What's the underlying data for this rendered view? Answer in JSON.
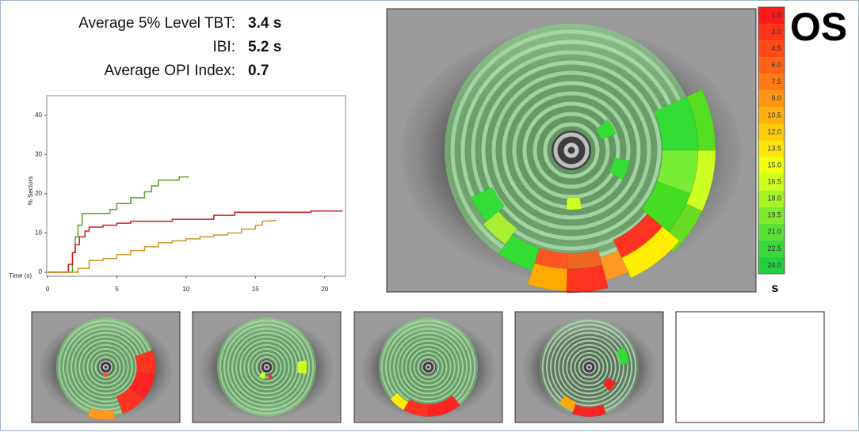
{
  "stats": [
    {
      "label": "Average 5% Level TBT:",
      "value": "3.4 s"
    },
    {
      "label": "IBI:",
      "value": "5.2 s"
    },
    {
      "label": "Average OPI Index:",
      "value": "0.7"
    }
  ],
  "chart_data": {
    "type": "line",
    "x_label": "Time (s)",
    "y_label": "% Sectors",
    "xlim": [
      0,
      21.5
    ],
    "ylim": [
      -1,
      45
    ],
    "xticks": [
      0,
      5,
      10,
      15,
      20
    ],
    "yticks": [
      0,
      10,
      20,
      30,
      40
    ],
    "series": [
      {
        "color": "#5aa02c",
        "x": [
          0,
          1.8,
          1.8,
          2.0,
          2.0,
          2.2,
          2.2,
          2.5,
          2.5,
          4.5,
          4.5,
          5,
          5,
          6,
          6,
          7,
          7,
          7.5,
          7.5,
          8,
          8,
          9.5,
          9.5,
          10.2
        ],
        "values": [
          0,
          0,
          5,
          5,
          9,
          9,
          12,
          12,
          15,
          15,
          16,
          16,
          17.5,
          17.5,
          19,
          19,
          20.5,
          20.5,
          22,
          22,
          23.5,
          23.5,
          24.3,
          24.3
        ]
      },
      {
        "color": "#cc1f1f",
        "x": [
          0,
          1.5,
          1.5,
          1.8,
          1.8,
          2.0,
          2.0,
          2.3,
          2.3,
          2.7,
          2.7,
          3,
          3,
          4,
          4,
          5,
          5,
          6,
          6,
          9,
          9,
          12,
          12,
          13.5,
          13.5,
          19,
          19,
          21.3
        ],
        "values": [
          0,
          0,
          2,
          2,
          5,
          5,
          7,
          7,
          9,
          9,
          10.5,
          10.5,
          11.5,
          11.5,
          12,
          12,
          12.5,
          12.5,
          13,
          13,
          13.5,
          13.5,
          14.5,
          14.5,
          15.3,
          15.3,
          15.6,
          15.6
        ]
      },
      {
        "color": "#d4962a",
        "x": [
          0,
          2.2,
          2.2,
          3,
          3,
          4,
          4,
          5,
          5,
          6,
          6,
          7,
          7,
          8,
          8,
          9,
          9,
          10,
          10,
          11,
          11,
          12,
          12,
          13,
          13,
          14,
          14,
          15,
          15,
          15.5,
          15.5,
          16.5
        ],
        "values": [
          0,
          0,
          1,
          1,
          3,
          3,
          3.5,
          3.5,
          4.5,
          4.5,
          5.5,
          5.5,
          6.5,
          6.5,
          7.5,
          7.5,
          8,
          8,
          8.5,
          8.5,
          9,
          9,
          9.5,
          9.5,
          10,
          10,
          11,
          11,
          12,
          12,
          13,
          13.2
        ]
      }
    ]
  },
  "scale": {
    "labels": [
      "1.5",
      "3.0",
      "4.5",
      "6.0",
      "7.5",
      "9.0",
      "10.5",
      "12.0",
      "13.5",
      "15.0",
      "16.5",
      "18.0",
      "19.5",
      "21.0",
      "22.5",
      "24.0"
    ],
    "colors": [
      "#ff1a1a",
      "#ff3318",
      "#ff4a16",
      "#ff6214",
      "#ff7a12",
      "#ff9510",
      "#ffb00e",
      "#ffcc0c",
      "#ffe60a",
      "#eeff10",
      "#ccff1a",
      "#a6f424",
      "#80ea2e",
      "#5ce036",
      "#3ad83c",
      "#22d040"
    ],
    "unit": "s"
  },
  "eye_label": "OS"
}
